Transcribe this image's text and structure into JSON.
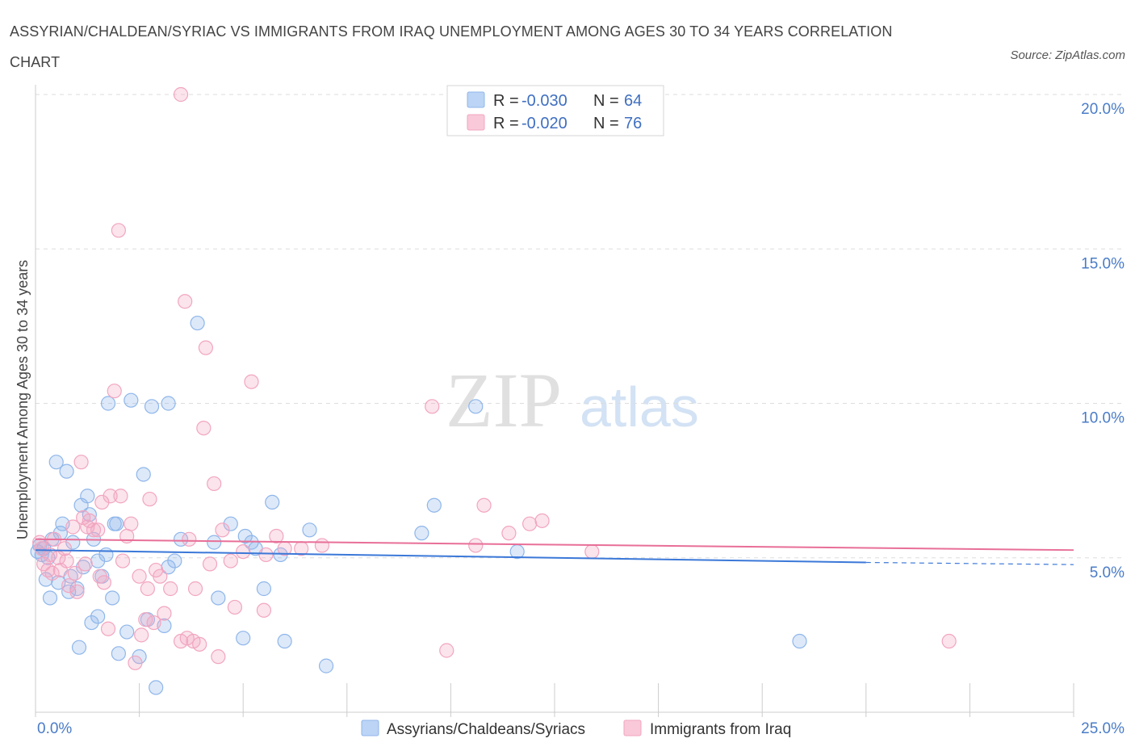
{
  "title": "ASSYRIAN/CHALDEAN/SYRIAC VS IMMIGRANTS FROM IRAQ UNEMPLOYMENT AMONG AGES 30 TO 34 YEARS CORRELATION CHART",
  "source": "Source: ZipAtlas.com",
  "watermark": {
    "zip": "ZIP",
    "atlas": "atlas"
  },
  "colors": {
    "blue": "#8fb6ea",
    "blue_line": "#3b78d8",
    "pink": "#f2a5c0",
    "pink_line": "#e86f98",
    "tick": "#4a7cc7"
  },
  "legend": {
    "rows": [
      {
        "r_label": "R = ",
        "r_value": "-0.030",
        "n_label": "N = ",
        "n_value": "64"
      },
      {
        "r_label": "R = ",
        "r_value": "-0.020",
        "n_label": "N = ",
        "n_value": "76"
      }
    ]
  },
  "chart_data": {
    "type": "scatter",
    "title": "ASSYRIAN/CHALDEAN/SYRIAC VS IMMIGRANTS FROM IRAQ UNEMPLOYMENT AMONG AGES 30 TO 34 YEARS CORRELATION CHART",
    "xlabel": "",
    "ylabel": "Unemployment Among Ages 30 to 34 years",
    "xlim": [
      0,
      25
    ],
    "ylim": [
      0,
      20
    ],
    "x_ticks": [
      {
        "value": 0,
        "label": "0.0%"
      },
      {
        "value": 25,
        "label": "25.0%"
      }
    ],
    "y_ticks": [
      {
        "value": 5,
        "label": "5.0%"
      },
      {
        "value": 10,
        "label": "10.0%"
      },
      {
        "value": 15,
        "label": "15.0%"
      },
      {
        "value": 20,
        "label": "20.0%"
      }
    ],
    "series": [
      {
        "name": "Assyrians/Chaldeans/Syriacs",
        "color": "#8fb6ea",
        "trend": {
          "x0": 0,
          "y0": 5.25,
          "x1": 20,
          "y1": 4.85,
          "dash_to_x": 25,
          "dash_to_y": 4.78
        },
        "points": [
          [
            0.1,
            5.4
          ],
          [
            0.15,
            5.1
          ],
          [
            0.2,
            5.3
          ],
          [
            0.25,
            4.3
          ],
          [
            0.35,
            3.7
          ],
          [
            0.4,
            5.6
          ],
          [
            0.5,
            8.1
          ],
          [
            0.55,
            4.2
          ],
          [
            0.6,
            5.8
          ],
          [
            0.65,
            6.1
          ],
          [
            0.75,
            7.8
          ],
          [
            0.8,
            3.9
          ],
          [
            0.85,
            4.4
          ],
          [
            0.9,
            5.5
          ],
          [
            1.0,
            4.0
          ],
          [
            1.05,
            2.1
          ],
          [
            1.1,
            6.7
          ],
          [
            1.15,
            4.7
          ],
          [
            1.25,
            7.0
          ],
          [
            1.3,
            6.4
          ],
          [
            1.35,
            2.9
          ],
          [
            1.4,
            5.6
          ],
          [
            1.5,
            4.9
          ],
          [
            1.5,
            3.1
          ],
          [
            1.6,
            4.4
          ],
          [
            1.7,
            5.1
          ],
          [
            1.75,
            10.0
          ],
          [
            1.85,
            3.7
          ],
          [
            1.9,
            6.1
          ],
          [
            2.0,
            1.9
          ],
          [
            2.2,
            2.6
          ],
          [
            2.3,
            10.1
          ],
          [
            2.5,
            1.8
          ],
          [
            2.6,
            7.7
          ],
          [
            2.7,
            3.0
          ],
          [
            2.8,
            9.9
          ],
          [
            2.9,
            0.8
          ],
          [
            3.1,
            2.8
          ],
          [
            3.2,
            10.0
          ],
          [
            3.2,
            4.7
          ],
          [
            3.35,
            4.9
          ],
          [
            3.5,
            5.6
          ],
          [
            3.9,
            12.6
          ],
          [
            4.3,
            5.5
          ],
          [
            4.4,
            3.7
          ],
          [
            4.7,
            6.1
          ],
          [
            5.0,
            2.4
          ],
          [
            5.05,
            5.7
          ],
          [
            5.2,
            5.5
          ],
          [
            5.3,
            5.3
          ],
          [
            5.5,
            4.0
          ],
          [
            5.7,
            6.8
          ],
          [
            5.9,
            5.1
          ],
          [
            6.0,
            2.3
          ],
          [
            6.6,
            5.9
          ],
          [
            7.0,
            1.5
          ],
          [
            9.3,
            5.8
          ],
          [
            9.6,
            6.7
          ],
          [
            10.6,
            9.9
          ],
          [
            11.6,
            5.2
          ],
          [
            18.4,
            2.3
          ],
          [
            0.05,
            5.2
          ],
          [
            0.3,
            5.0
          ],
          [
            1.95,
            6.1
          ]
        ]
      },
      {
        "name": "Immigrants from Iraq",
        "color": "#f2a5c0",
        "trend": {
          "x0": 0,
          "y0": 5.6,
          "x1": 25,
          "y1": 5.25
        },
        "points": [
          [
            0.1,
            5.5
          ],
          [
            0.15,
            5.3
          ],
          [
            0.2,
            4.8
          ],
          [
            0.3,
            4.6
          ],
          [
            0.35,
            5.1
          ],
          [
            0.4,
            4.5
          ],
          [
            0.45,
            5.6
          ],
          [
            0.55,
            5.0
          ],
          [
            0.6,
            4.6
          ],
          [
            0.7,
            5.3
          ],
          [
            0.75,
            4.9
          ],
          [
            0.8,
            4.1
          ],
          [
            0.9,
            6.0
          ],
          [
            0.95,
            4.5
          ],
          [
            1.0,
            3.9
          ],
          [
            1.1,
            8.1
          ],
          [
            1.15,
            6.3
          ],
          [
            1.2,
            4.8
          ],
          [
            1.25,
            6.0
          ],
          [
            1.3,
            6.2
          ],
          [
            1.4,
            5.9
          ],
          [
            1.5,
            5.9
          ],
          [
            1.55,
            4.4
          ],
          [
            1.6,
            6.8
          ],
          [
            1.65,
            4.2
          ],
          [
            1.75,
            2.7
          ],
          [
            1.8,
            7.0
          ],
          [
            1.9,
            10.4
          ],
          [
            2.0,
            15.6
          ],
          [
            2.05,
            7.0
          ],
          [
            2.1,
            4.9
          ],
          [
            2.2,
            5.7
          ],
          [
            2.3,
            6.1
          ],
          [
            2.4,
            1.6
          ],
          [
            2.5,
            4.4
          ],
          [
            2.55,
            2.5
          ],
          [
            2.65,
            3.0
          ],
          [
            2.7,
            4.0
          ],
          [
            2.75,
            6.9
          ],
          [
            2.85,
            2.9
          ],
          [
            2.9,
            4.6
          ],
          [
            3.0,
            4.4
          ],
          [
            3.1,
            3.2
          ],
          [
            3.25,
            4.0
          ],
          [
            3.5,
            2.3
          ],
          [
            3.6,
            13.3
          ],
          [
            3.65,
            2.4
          ],
          [
            3.7,
            5.6
          ],
          [
            3.8,
            2.3
          ],
          [
            3.85,
            4.0
          ],
          [
            3.95,
            2.2
          ],
          [
            4.05,
            9.2
          ],
          [
            4.1,
            11.8
          ],
          [
            4.2,
            4.8
          ],
          [
            4.3,
            7.4
          ],
          [
            4.4,
            1.8
          ],
          [
            4.5,
            5.9
          ],
          [
            4.7,
            4.9
          ],
          [
            4.8,
            3.4
          ],
          [
            5.0,
            5.2
          ],
          [
            5.2,
            10.7
          ],
          [
            5.5,
            3.3
          ],
          [
            5.55,
            5.1
          ],
          [
            5.8,
            5.7
          ],
          [
            6.0,
            5.3
          ],
          [
            6.4,
            5.3
          ],
          [
            6.9,
            5.4
          ],
          [
            9.55,
            9.9
          ],
          [
            9.9,
            2.0
          ],
          [
            10.6,
            5.4
          ],
          [
            10.8,
            6.7
          ],
          [
            11.4,
            5.8
          ],
          [
            11.9,
            6.1
          ],
          [
            12.2,
            6.2
          ],
          [
            13.4,
            5.2
          ],
          [
            22.0,
            2.3
          ]
        ],
        "extra_points": [
          [
            3.5,
            20.0
          ]
        ]
      }
    ]
  },
  "bottom_legend": [
    {
      "label": "Assyrians/Chaldeans/Syriacs"
    },
    {
      "label": "Immigrants from Iraq"
    }
  ]
}
